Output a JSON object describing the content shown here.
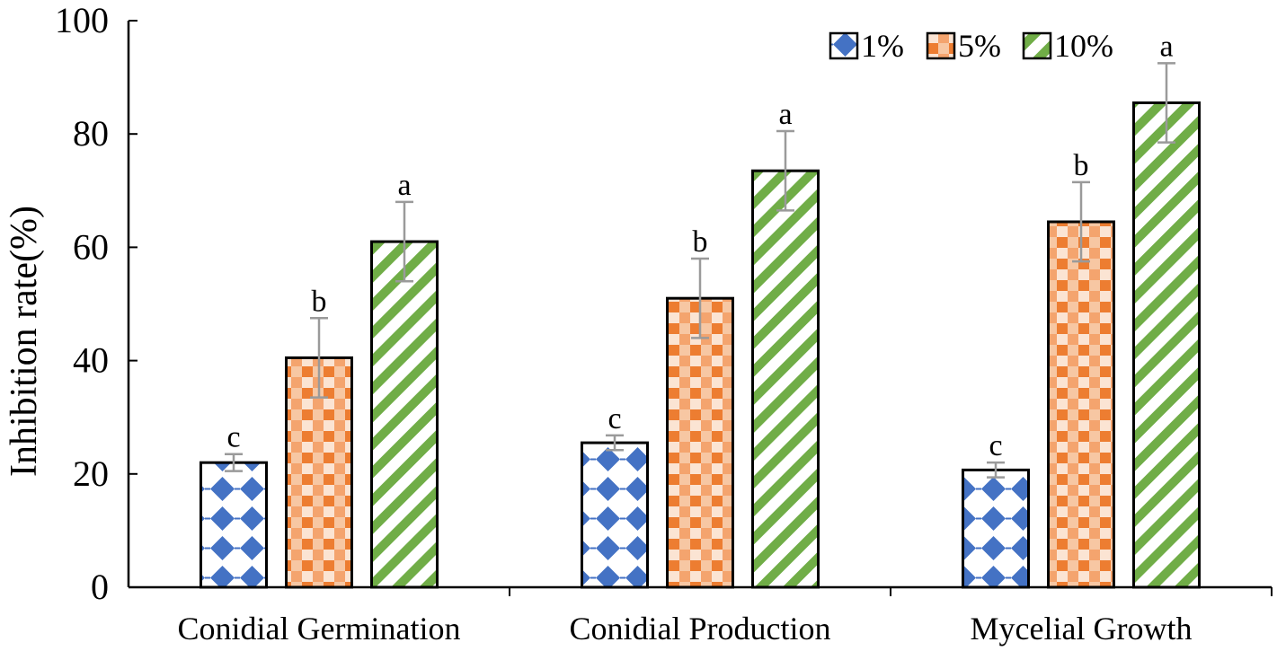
{
  "chart_data": {
    "type": "bar",
    "title": "",
    "xlabel": "",
    "ylabel": "Inhibition  rate(%)",
    "ylim": [
      0,
      100
    ],
    "yticks": [
      0,
      20,
      40,
      60,
      80,
      100
    ],
    "grid": false,
    "legend_position": "top-right",
    "categories": [
      "Conidial Germination",
      "Conidial Production",
      "Mycelial Growth"
    ],
    "series": [
      {
        "name": "1%",
        "color": "#4472C4",
        "pattern": "diamond",
        "values": [
          22,
          25.5,
          20.7
        ],
        "errors": [
          1.5,
          1.3,
          1.3
        ],
        "labels": [
          "c",
          "c",
          "c"
        ]
      },
      {
        "name": "5%",
        "color": "#ED7D31",
        "pattern": "check",
        "values": [
          40.5,
          51,
          64.5
        ],
        "errors": [
          7,
          7,
          7
        ],
        "labels": [
          "b",
          "b",
          "b"
        ]
      },
      {
        "name": "10%",
        "color": "#70AD47",
        "pattern": "diagonal",
        "values": [
          61,
          73.5,
          85.5
        ],
        "errors": [
          7,
          7,
          7
        ],
        "labels": [
          "a",
          "a",
          "a"
        ]
      }
    ]
  }
}
